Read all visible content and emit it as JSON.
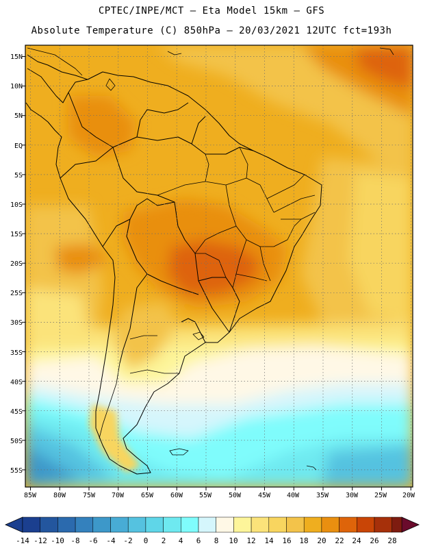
{
  "header": {
    "line1": "CPTEC/INPE/MCT –  Eta Model 15km – GFS",
    "line2": "Absolute Temperature (C) 850hPa – 20/03/2021 12UTC fct=193h"
  },
  "axes": {
    "lat_labels": [
      "15N",
      "10N",
      "5N",
      "EQ",
      "5S",
      "10S",
      "15S",
      "20S",
      "25S",
      "30S",
      "35S",
      "40S",
      "45S",
      "50S",
      "55S"
    ],
    "lon_labels": [
      "85W",
      "80W",
      "75W",
      "70W",
      "65W",
      "60W",
      "55W",
      "50W",
      "45W",
      "40W",
      "35W",
      "30W",
      "25W",
      "20W"
    ]
  },
  "colorbar": {
    "labels": [
      "-14",
      "-12",
      "-10",
      "-8",
      "-6",
      "-4",
      "-2",
      "0",
      "2",
      "4",
      "6",
      "8",
      "10",
      "12",
      "14",
      "16",
      "18",
      "20",
      "22",
      "24",
      "26",
      "28"
    ],
    "colors": [
      "#1b3f8f",
      "#23569e",
      "#2b6aae",
      "#3481bd",
      "#3d98c9",
      "#48acd5",
      "#55c2e0",
      "#5fd6e8",
      "#6ee9f0",
      "#7ffcfc",
      "#d5f6fc",
      "#fff8e6",
      "#fdf59a",
      "#fbe37a",
      "#f8d55f",
      "#f3c34a",
      "#efae1f",
      "#e98f10",
      "#de640a",
      "#c94506",
      "#a6300a",
      "#7e1c10",
      "#6a0b2c"
    ]
  }
}
